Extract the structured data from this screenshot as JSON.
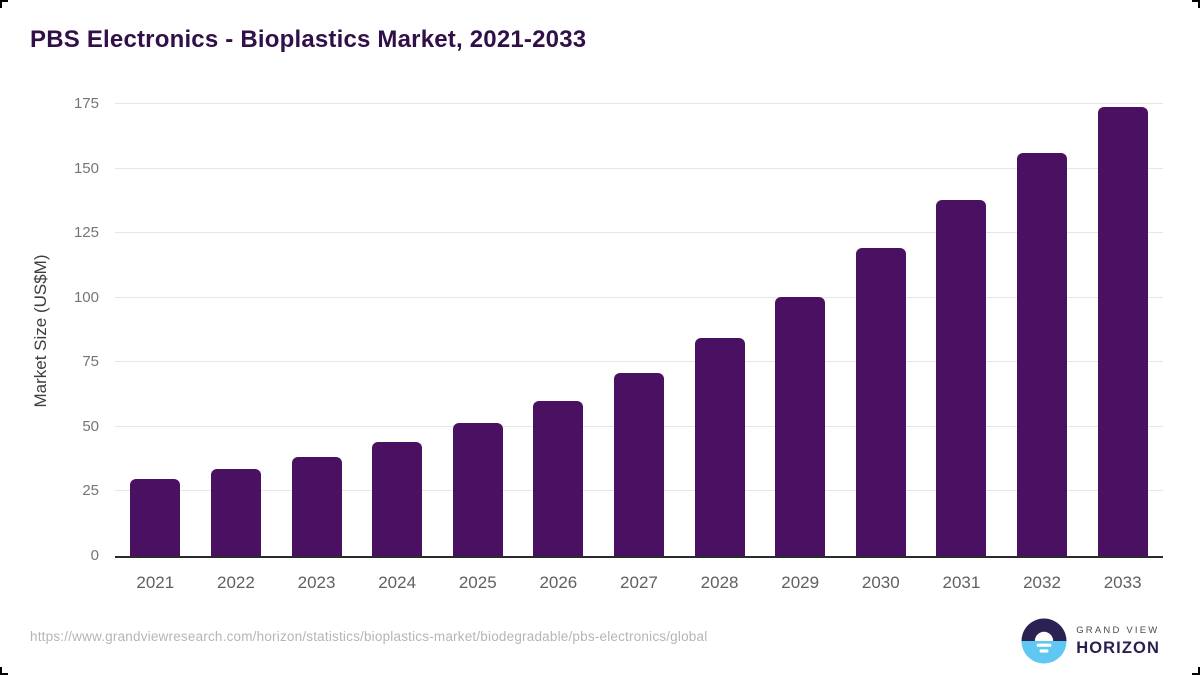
{
  "chart_data": {
    "type": "bar",
    "title": "PBS Electronics - Bioplastics Market, 2021-2033",
    "categories": [
      "2021",
      "2022",
      "2023",
      "2024",
      "2025",
      "2026",
      "2027",
      "2028",
      "2029",
      "2030",
      "2031",
      "2032",
      "2033"
    ],
    "values": [
      29.9,
      33.5,
      38.4,
      44.3,
      51.6,
      60.1,
      71.0,
      84.3,
      100.4,
      119.4,
      137.7,
      155.9,
      173.7
    ],
    "xlabel": "",
    "ylabel": "Market Size (US$M)",
    "ylim": [
      0,
      175
    ],
    "yticks": [
      0,
      25,
      50,
      75,
      100,
      125,
      150,
      175
    ],
    "grid": "horizontal",
    "legend": "none",
    "bar_color": "#4a1061"
  },
  "footer": {
    "source_url": "https://www.grandviewresearch.com/horizon/statistics/bioplastics-market/biodegradable/pbs-electronics/global",
    "logo": {
      "line1": "GRAND VIEW",
      "line2": "HORIZON"
    }
  },
  "colors": {
    "bar": "#4a1061",
    "title_text": "#311049",
    "axis_line": "#2b2b2b",
    "gridline": "#e6e6e6",
    "y_tick_label": "#757575",
    "x_tick_label": "#606060",
    "source_text": "#b5b5b5",
    "logo_dark": "#2b2153",
    "logo_blue": "#5ec8f2"
  }
}
